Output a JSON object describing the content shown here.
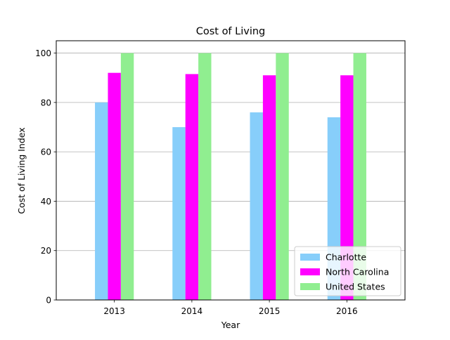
{
  "chart_data": {
    "type": "bar",
    "title": "Cost of Living",
    "xlabel": "Year",
    "ylabel": "Cost of Living Index",
    "categories": [
      "2013",
      "2014",
      "2015",
      "2016"
    ],
    "series": [
      {
        "name": "Charlotte",
        "color": "#87cefa",
        "values": [
          80,
          70,
          76,
          74
        ]
      },
      {
        "name": "North Carolina",
        "color": "#ff00ff",
        "values": [
          92,
          91.5,
          91,
          91
        ]
      },
      {
        "name": "United States",
        "color": "#90ee90",
        "values": [
          100,
          100,
          100,
          100
        ]
      }
    ],
    "ylim": [
      0,
      105
    ],
    "yticks": [
      0,
      20,
      40,
      60,
      80,
      100
    ],
    "grid": "y",
    "legend_position": "lower-right"
  }
}
